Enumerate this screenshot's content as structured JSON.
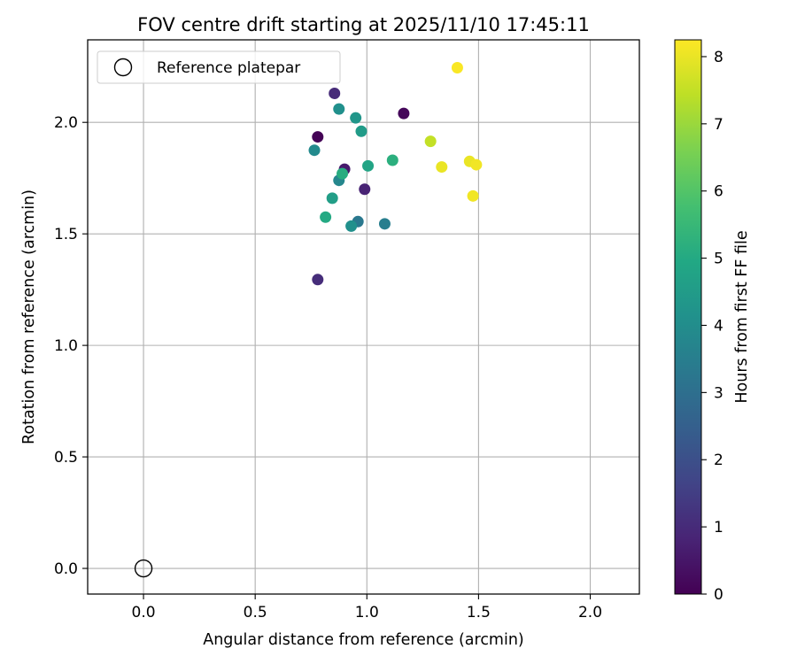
{
  "chart_data": {
    "type": "scatter",
    "title": "FOV centre drift starting at 2025/11/10 17:45:11",
    "xlabel": "Angular distance from reference (arcmin)",
    "ylabel": "Rotation from reference (arcmin)",
    "xlim": [
      -0.25,
      2.22
    ],
    "ylim": [
      -0.115,
      2.37
    ],
    "xticks": [
      0.0,
      0.5,
      1.0,
      1.5,
      2.0
    ],
    "xtick_labels": [
      "0.0",
      "0.5",
      "1.0",
      "1.5",
      "2.0"
    ],
    "yticks": [
      0.0,
      0.5,
      1.0,
      1.5,
      2.0
    ],
    "ytick_labels": [
      "0.0",
      "0.5",
      "1.0",
      "1.5",
      "2.0"
    ],
    "grid": true,
    "legend": {
      "placement": "upper-left",
      "entries": [
        "Reference platepar"
      ]
    },
    "reference_point": {
      "name": "Reference platepar",
      "x": 0.0,
      "y": 0.0,
      "marker": "open-circle",
      "color": "#000000"
    },
    "colorbar": {
      "label": "Hours from first FF file",
      "range": [
        0,
        8.25
      ],
      "ticks": [
        0,
        1,
        2,
        3,
        4,
        5,
        6,
        7,
        8
      ],
      "tick_labels": [
        "0",
        "1",
        "2",
        "3",
        "4",
        "5",
        "6",
        "7",
        "8"
      ],
      "colormap": "viridis"
    },
    "series": [
      {
        "color_by": "hours",
        "points": [
          {
            "x": 0.78,
            "y": 1.935,
            "hours": 0.05
          },
          {
            "x": 1.165,
            "y": 2.04,
            "hours": 0.15
          },
          {
            "x": 0.9,
            "y": 1.79,
            "hours": 0.6
          },
          {
            "x": 0.99,
            "y": 1.7,
            "hours": 0.8
          },
          {
            "x": 0.855,
            "y": 2.13,
            "hours": 1.0
          },
          {
            "x": 0.78,
            "y": 1.295,
            "hours": 1.05
          },
          {
            "x": 0.96,
            "y": 1.555,
            "hours": 3.3
          },
          {
            "x": 1.08,
            "y": 1.545,
            "hours": 3.5
          },
          {
            "x": 0.875,
            "y": 1.74,
            "hours": 3.8
          },
          {
            "x": 0.765,
            "y": 1.875,
            "hours": 3.9
          },
          {
            "x": 0.875,
            "y": 2.06,
            "hours": 4.1
          },
          {
            "x": 0.93,
            "y": 1.535,
            "hours": 4.1
          },
          {
            "x": 0.95,
            "y": 2.02,
            "hours": 4.3
          },
          {
            "x": 0.975,
            "y": 1.96,
            "hours": 4.5
          },
          {
            "x": 0.845,
            "y": 1.66,
            "hours": 4.6
          },
          {
            "x": 1.005,
            "y": 1.805,
            "hours": 4.8
          },
          {
            "x": 0.815,
            "y": 1.575,
            "hours": 5.0
          },
          {
            "x": 0.89,
            "y": 1.77,
            "hours": 5.1
          },
          {
            "x": 1.115,
            "y": 1.83,
            "hours": 5.2
          },
          {
            "x": 1.285,
            "y": 1.915,
            "hours": 7.5
          },
          {
            "x": 1.335,
            "y": 1.8,
            "hours": 8.0
          },
          {
            "x": 1.46,
            "y": 1.825,
            "hours": 8.0
          },
          {
            "x": 1.49,
            "y": 1.81,
            "hours": 8.1
          },
          {
            "x": 1.475,
            "y": 1.67,
            "hours": 8.1
          },
          {
            "x": 1.405,
            "y": 2.245,
            "hours": 8.2
          }
        ]
      }
    ]
  }
}
